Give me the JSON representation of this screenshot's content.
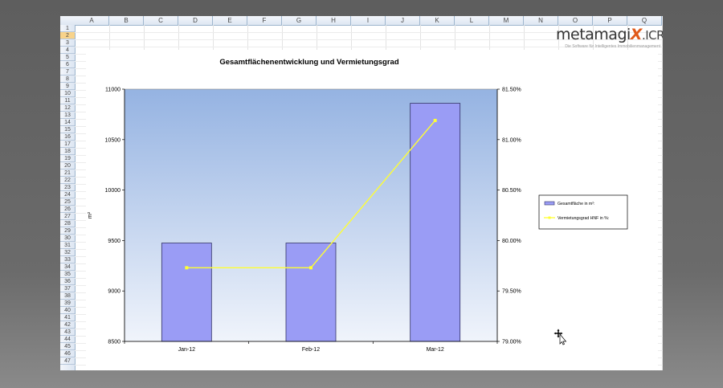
{
  "columns": [
    "A",
    "B",
    "C",
    "D",
    "E",
    "F",
    "G",
    "H",
    "I",
    "J",
    "K",
    "L",
    "M",
    "N",
    "O",
    "P",
    "Q"
  ],
  "rows": [
    "1",
    "2",
    "3",
    "4",
    "5",
    "6",
    "7",
    "8",
    "9",
    "10",
    "11",
    "12",
    "13",
    "14",
    "15",
    "16",
    "17",
    "18",
    "19",
    "20",
    "21",
    "22",
    "23",
    "24",
    "25",
    "26",
    "27",
    "28",
    "29",
    "30",
    "31",
    "32",
    "33",
    "34",
    "35",
    "36",
    "37",
    "38",
    "39",
    "40",
    "41",
    "42",
    "43",
    "44",
    "45",
    "46",
    "47"
  ],
  "selected_row": "2",
  "logo": {
    "brand_prefix": "metamagi",
    "brand_x": "X",
    "brand_suffix": ".ICRS",
    "tagline": "Die Software für Intelligentes Immobilienmanagement"
  },
  "colors": {
    "bar_fill": "#9a9cf5",
    "bar_stroke": "#333366",
    "line": "#ffff33",
    "plot_top": "#95b3e2",
    "plot_bottom": "#f0f4fb"
  },
  "chart_data": {
    "type": "bar",
    "title": "Gesamtflächenentwicklung und Vermietungsgrad",
    "categories": [
      "Jan-12",
      "Feb-12",
      "Mar-12"
    ],
    "ylabel": "m²",
    "ylim": [
      8500,
      11000
    ],
    "yticks": [
      "11000",
      "10500",
      "10000",
      "9500",
      "9000",
      "8500"
    ],
    "y2lim": [
      79.0,
      81.5
    ],
    "y2ticks": [
      "81.50%",
      "81.00%",
      "80.50%",
      "80.00%",
      "79.50%",
      "79.00%"
    ],
    "series": [
      {
        "name": "Gesamtfläche  in m²:",
        "type": "bar",
        "axis": "left",
        "values": [
          9475,
          9475,
          10860
        ]
      },
      {
        "name": "Vermietungsgrad  HNF in %:",
        "type": "line",
        "axis": "right",
        "values": [
          79.73,
          79.73,
          81.19
        ]
      }
    ],
    "legend": "right",
    "grid": false
  }
}
